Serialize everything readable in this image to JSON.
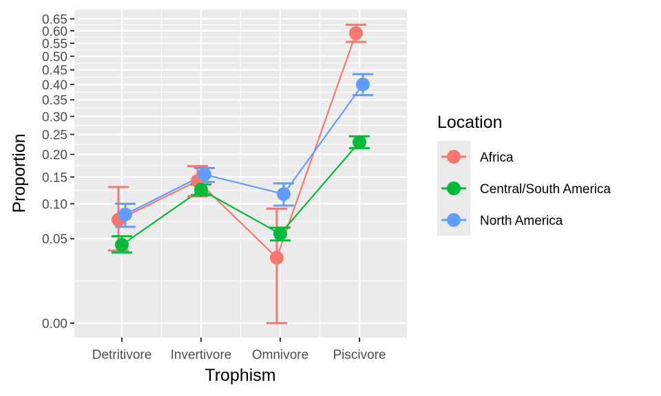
{
  "chart_data": {
    "type": "line",
    "title": "",
    "xlabel": "Trophism",
    "ylabel": "Proportion",
    "y_scale": "sqrt",
    "ylim": [
      0,
      0.66
    ],
    "categories": [
      "Detritivore",
      "Invertivore",
      "Omnivore",
      "Piscivore"
    ],
    "y_ticks": [
      0.0,
      0.05,
      0.1,
      0.15,
      0.2,
      0.25,
      0.3,
      0.35,
      0.4,
      0.45,
      0.5,
      0.55,
      0.6,
      0.65
    ],
    "y_tick_labels": [
      "0.00",
      "0.05",
      "0.10",
      "0.15",
      "0.20",
      "0.25",
      "0.30",
      "0.35",
      "0.40",
      "0.45",
      "0.50",
      "0.55",
      "0.60",
      "0.65"
    ],
    "grid": true,
    "legend": {
      "title": "Location",
      "position": "right"
    },
    "series": [
      {
        "name": "Africa",
        "color": "#F8766D",
        "values": [
          0.075,
          0.142,
          0.03,
          0.59
        ],
        "error_low": [
          0.037,
          0.113,
          0.0,
          0.555
        ],
        "error_high": [
          0.13,
          0.173,
          0.092,
          0.625
        ]
      },
      {
        "name": "Central/South America",
        "color": "#00BA38",
        "values": [
          0.043,
          0.125,
          0.056,
          0.23
        ],
        "error_low": [
          0.035,
          0.115,
          0.048,
          0.215
        ],
        "error_high": [
          0.053,
          0.135,
          0.064,
          0.245
        ]
      },
      {
        "name": "North America",
        "color": "#619CFF",
        "values": [
          0.083,
          0.155,
          0.117,
          0.4
        ],
        "error_low": [
          0.065,
          0.14,
          0.097,
          0.365
        ],
        "error_high": [
          0.1,
          0.169,
          0.137,
          0.435
        ]
      }
    ]
  }
}
